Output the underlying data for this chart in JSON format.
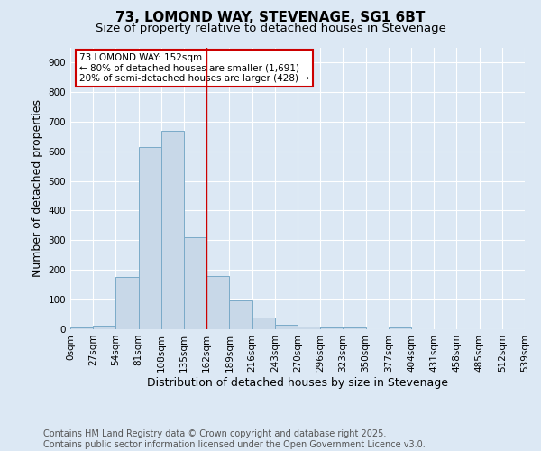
{
  "title": "73, LOMOND WAY, STEVENAGE, SG1 6BT",
  "subtitle": "Size of property relative to detached houses in Stevenage",
  "xlabel": "Distribution of detached houses by size in Stevenage",
  "ylabel": "Number of detached properties",
  "bin_labels": [
    "0sqm",
    "27sqm",
    "54sqm",
    "81sqm",
    "108sqm",
    "135sqm",
    "162sqm",
    "189sqm",
    "216sqm",
    "243sqm",
    "270sqm",
    "296sqm",
    "323sqm",
    "350sqm",
    "377sqm",
    "404sqm",
    "431sqm",
    "458sqm",
    "485sqm",
    "512sqm",
    "539sqm"
  ],
  "bar_values": [
    5,
    12,
    175,
    615,
    670,
    310,
    178,
    98,
    40,
    15,
    10,
    5,
    5,
    0,
    5,
    0,
    0,
    0,
    0,
    0
  ],
  "bar_color": "#c8d8e8",
  "bar_edge_color": "#7aaac8",
  "vline_x": 6,
  "vline_color": "#cc0000",
  "annotation_text_line1": "73 LOMOND WAY: 152sqm",
  "annotation_text_line2": "← 80% of detached houses are smaller (1,691)",
  "annotation_text_line3": "20% of semi-detached houses are larger (428) →",
  "annotation_box_color": "#cc0000",
  "annotation_fill": "#ffffff",
  "footer_line1": "Contains HM Land Registry data © Crown copyright and database right 2025.",
  "footer_line2": "Contains public sector information licensed under the Open Government Licence v3.0.",
  "bg_color": "#dce8f4",
  "plot_bg_color": "#dce8f4",
  "ylim": [
    0,
    950
  ],
  "yticks": [
    0,
    100,
    200,
    300,
    400,
    500,
    600,
    700,
    800,
    900
  ],
  "title_fontsize": 11,
  "subtitle_fontsize": 9.5,
  "axis_label_fontsize": 9,
  "tick_fontsize": 7.5,
  "annotation_fontsize": 7.5,
  "footer_fontsize": 7
}
